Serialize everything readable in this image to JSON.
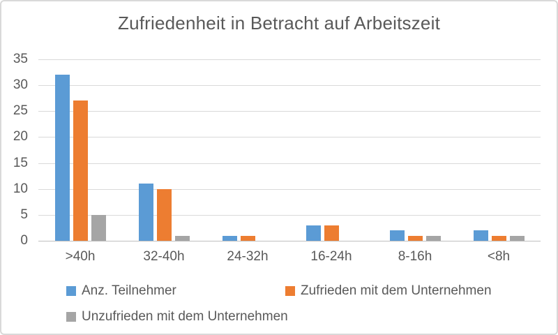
{
  "window": {
    "background": "#FFFFFF",
    "border_color": "#D9D9D9"
  },
  "chart_data": {
    "type": "bar",
    "title": "Zufriedenheit in Betracht auf Arbeitszeit",
    "categories": [
      ">40h",
      "32-40h",
      "24-32h",
      "16-24h",
      "8-16h",
      "<8h"
    ],
    "series": [
      {
        "name": "Anz. Teilnehmer",
        "color": "#5B9BD5",
        "values": [
          32,
          11,
          1,
          3,
          2,
          2
        ]
      },
      {
        "name": "Zufrieden mit dem Unternehmen",
        "color": "#ED7D31",
        "values": [
          27,
          10,
          1,
          3,
          1,
          1
        ]
      },
      {
        "name": "Unzufrieden mit dem Unternehmen",
        "color": "#A5A5A5",
        "values": [
          5,
          1,
          0,
          0,
          1,
          1
        ]
      }
    ],
    "xlabel": "",
    "ylabel": "",
    "ylim": [
      0,
      35
    ],
    "yticks": [
      0,
      5,
      10,
      15,
      20,
      25,
      30,
      35
    ],
    "grid": true,
    "legend_position": "bottom",
    "text_color": "#595959",
    "gridline_color": "#D9D9D9",
    "axis_line_color": "#BFBFBF"
  }
}
